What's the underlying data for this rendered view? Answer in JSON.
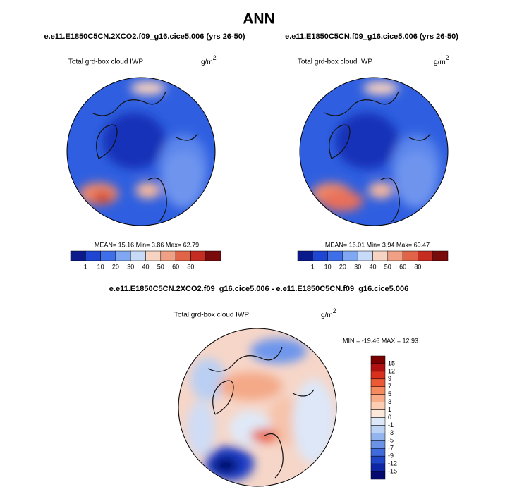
{
  "header": {
    "title": "ANN"
  },
  "panels": [
    {
      "title": "e.e11.E1850C5CN.2XCO2.f09_g16.cice5.006 (yrs 26-50)",
      "variable": "Total grd-box cloud IWP",
      "units": "g/m",
      "units_power": "2",
      "stats": "MEAN=  15.16  Min=   3.86  Max=  62.79"
    },
    {
      "title": "e.e11.E1850C5CN.f09_g16.cice5.006 (yrs 26-50)",
      "variable": "Total grd-box cloud IWP",
      "units": "g/m",
      "units_power": "2",
      "stats": "MEAN=  16.01  Min=   3.94  Max=  69.47"
    }
  ],
  "colorbar": {
    "labels": [
      "1",
      "10",
      "20",
      "30",
      "40",
      "50",
      "60",
      "80"
    ],
    "colors": [
      "#0a1a8c",
      "#1e46d2",
      "#3f6fe8",
      "#80a8f2",
      "#c7daf7",
      "#f7d3c3",
      "#f0a085",
      "#e06448",
      "#c52d23",
      "#7a0b0b"
    ]
  },
  "difference": {
    "title": "e.e11.E1850C5CN.2XCO2.f09_g16.cice5.006 - e.e11.E1850C5CN.f09_g16.cice5.006",
    "variable": "Total grd-box cloud IWP",
    "units": "g/m",
    "units_power": "2",
    "stats": "MIN = -19.46 MAX =  12.93",
    "colorbar": {
      "labels": [
        "15",
        "12",
        "9",
        "7",
        "5",
        "3",
        "1",
        "0",
        "-1",
        "-3",
        "-5",
        "-7",
        "-9",
        "-12",
        "-15"
      ],
      "colors": [
        "#7a0000",
        "#b01010",
        "#d8301c",
        "#ec5a35",
        "#f58a5e",
        "#f8ad88",
        "#fbcdb2",
        "#fde9dc",
        "#dde9f8",
        "#bcd3f3",
        "#93b4ee",
        "#6a92e6",
        "#3f6bdc",
        "#1f45c8",
        "#0e25a5",
        "#050a6e"
      ]
    }
  }
}
